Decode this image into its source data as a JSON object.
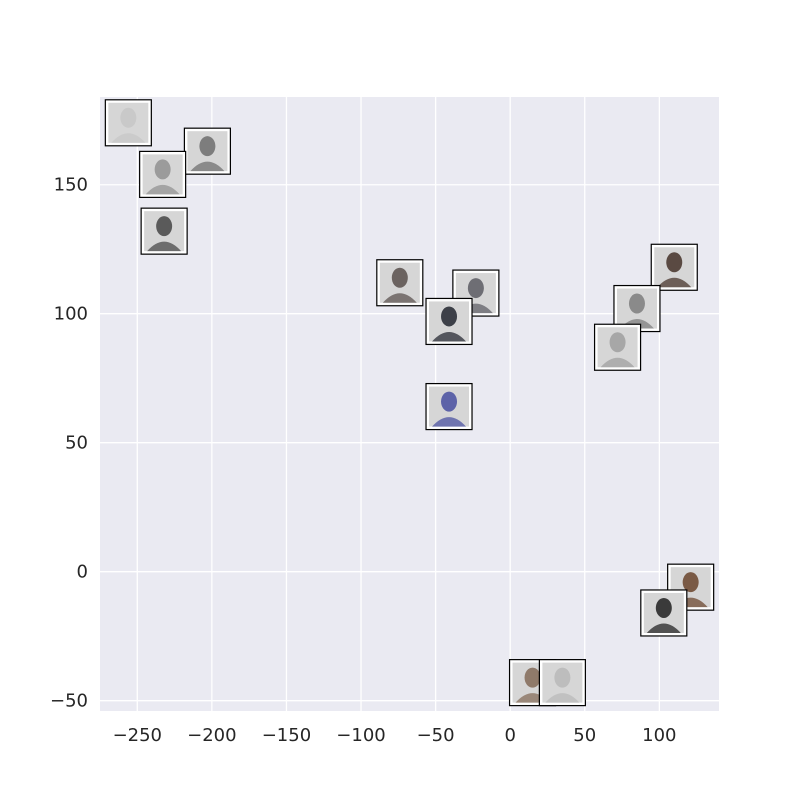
{
  "chart_data": {
    "type": "scatter",
    "title": "",
    "xlabel": "",
    "ylabel": "",
    "xlim": [
      -275,
      140
    ],
    "ylim": [
      -54,
      184
    ],
    "grid": true,
    "background_color": "#eaeaf2",
    "grid_color": "#ffffff",
    "x_ticks": [
      -250,
      -200,
      -150,
      -100,
      -50,
      0,
      50,
      100
    ],
    "x_tick_labels": [
      "−250",
      "−200",
      "−150",
      "−100",
      "−50",
      "0",
      "50",
      "100"
    ],
    "y_ticks": [
      -50,
      0,
      50,
      100,
      150
    ],
    "y_tick_labels": [
      "−50",
      "0",
      "50",
      "100",
      "150"
    ],
    "marker": "face-thumbnail-image",
    "points": [
      {
        "x": -256,
        "y": 174,
        "tone": "#c9c9c9"
      },
      {
        "x": -203,
        "y": 163,
        "tone": "#7d7d7d"
      },
      {
        "x": -233,
        "y": 154,
        "tone": "#9b9b9b"
      },
      {
        "x": -232,
        "y": 132,
        "tone": "#5a5a5a"
      },
      {
        "x": -74,
        "y": 112,
        "tone": "#6b6360"
      },
      {
        "x": -23,
        "y": 108,
        "tone": "#6e6e74"
      },
      {
        "x": -41,
        "y": 97,
        "tone": "#3d4048"
      },
      {
        "x": -41,
        "y": 64,
        "tone": "#5d63a8"
      },
      {
        "x": 110,
        "y": 118,
        "tone": "#5a4a42"
      },
      {
        "x": 85,
        "y": 102,
        "tone": "#8a8a8a"
      },
      {
        "x": 72,
        "y": 87,
        "tone": "#a7a7a7"
      },
      {
        "x": 121,
        "y": -6,
        "tone": "#7a5a45"
      },
      {
        "x": 103,
        "y": -16,
        "tone": "#3a3a3a"
      },
      {
        "x": 15,
        "y": -43,
        "tone": "#8f7a6a"
      },
      {
        "x": 35,
        "y": -43,
        "tone": "#bdbdbd"
      }
    ]
  }
}
